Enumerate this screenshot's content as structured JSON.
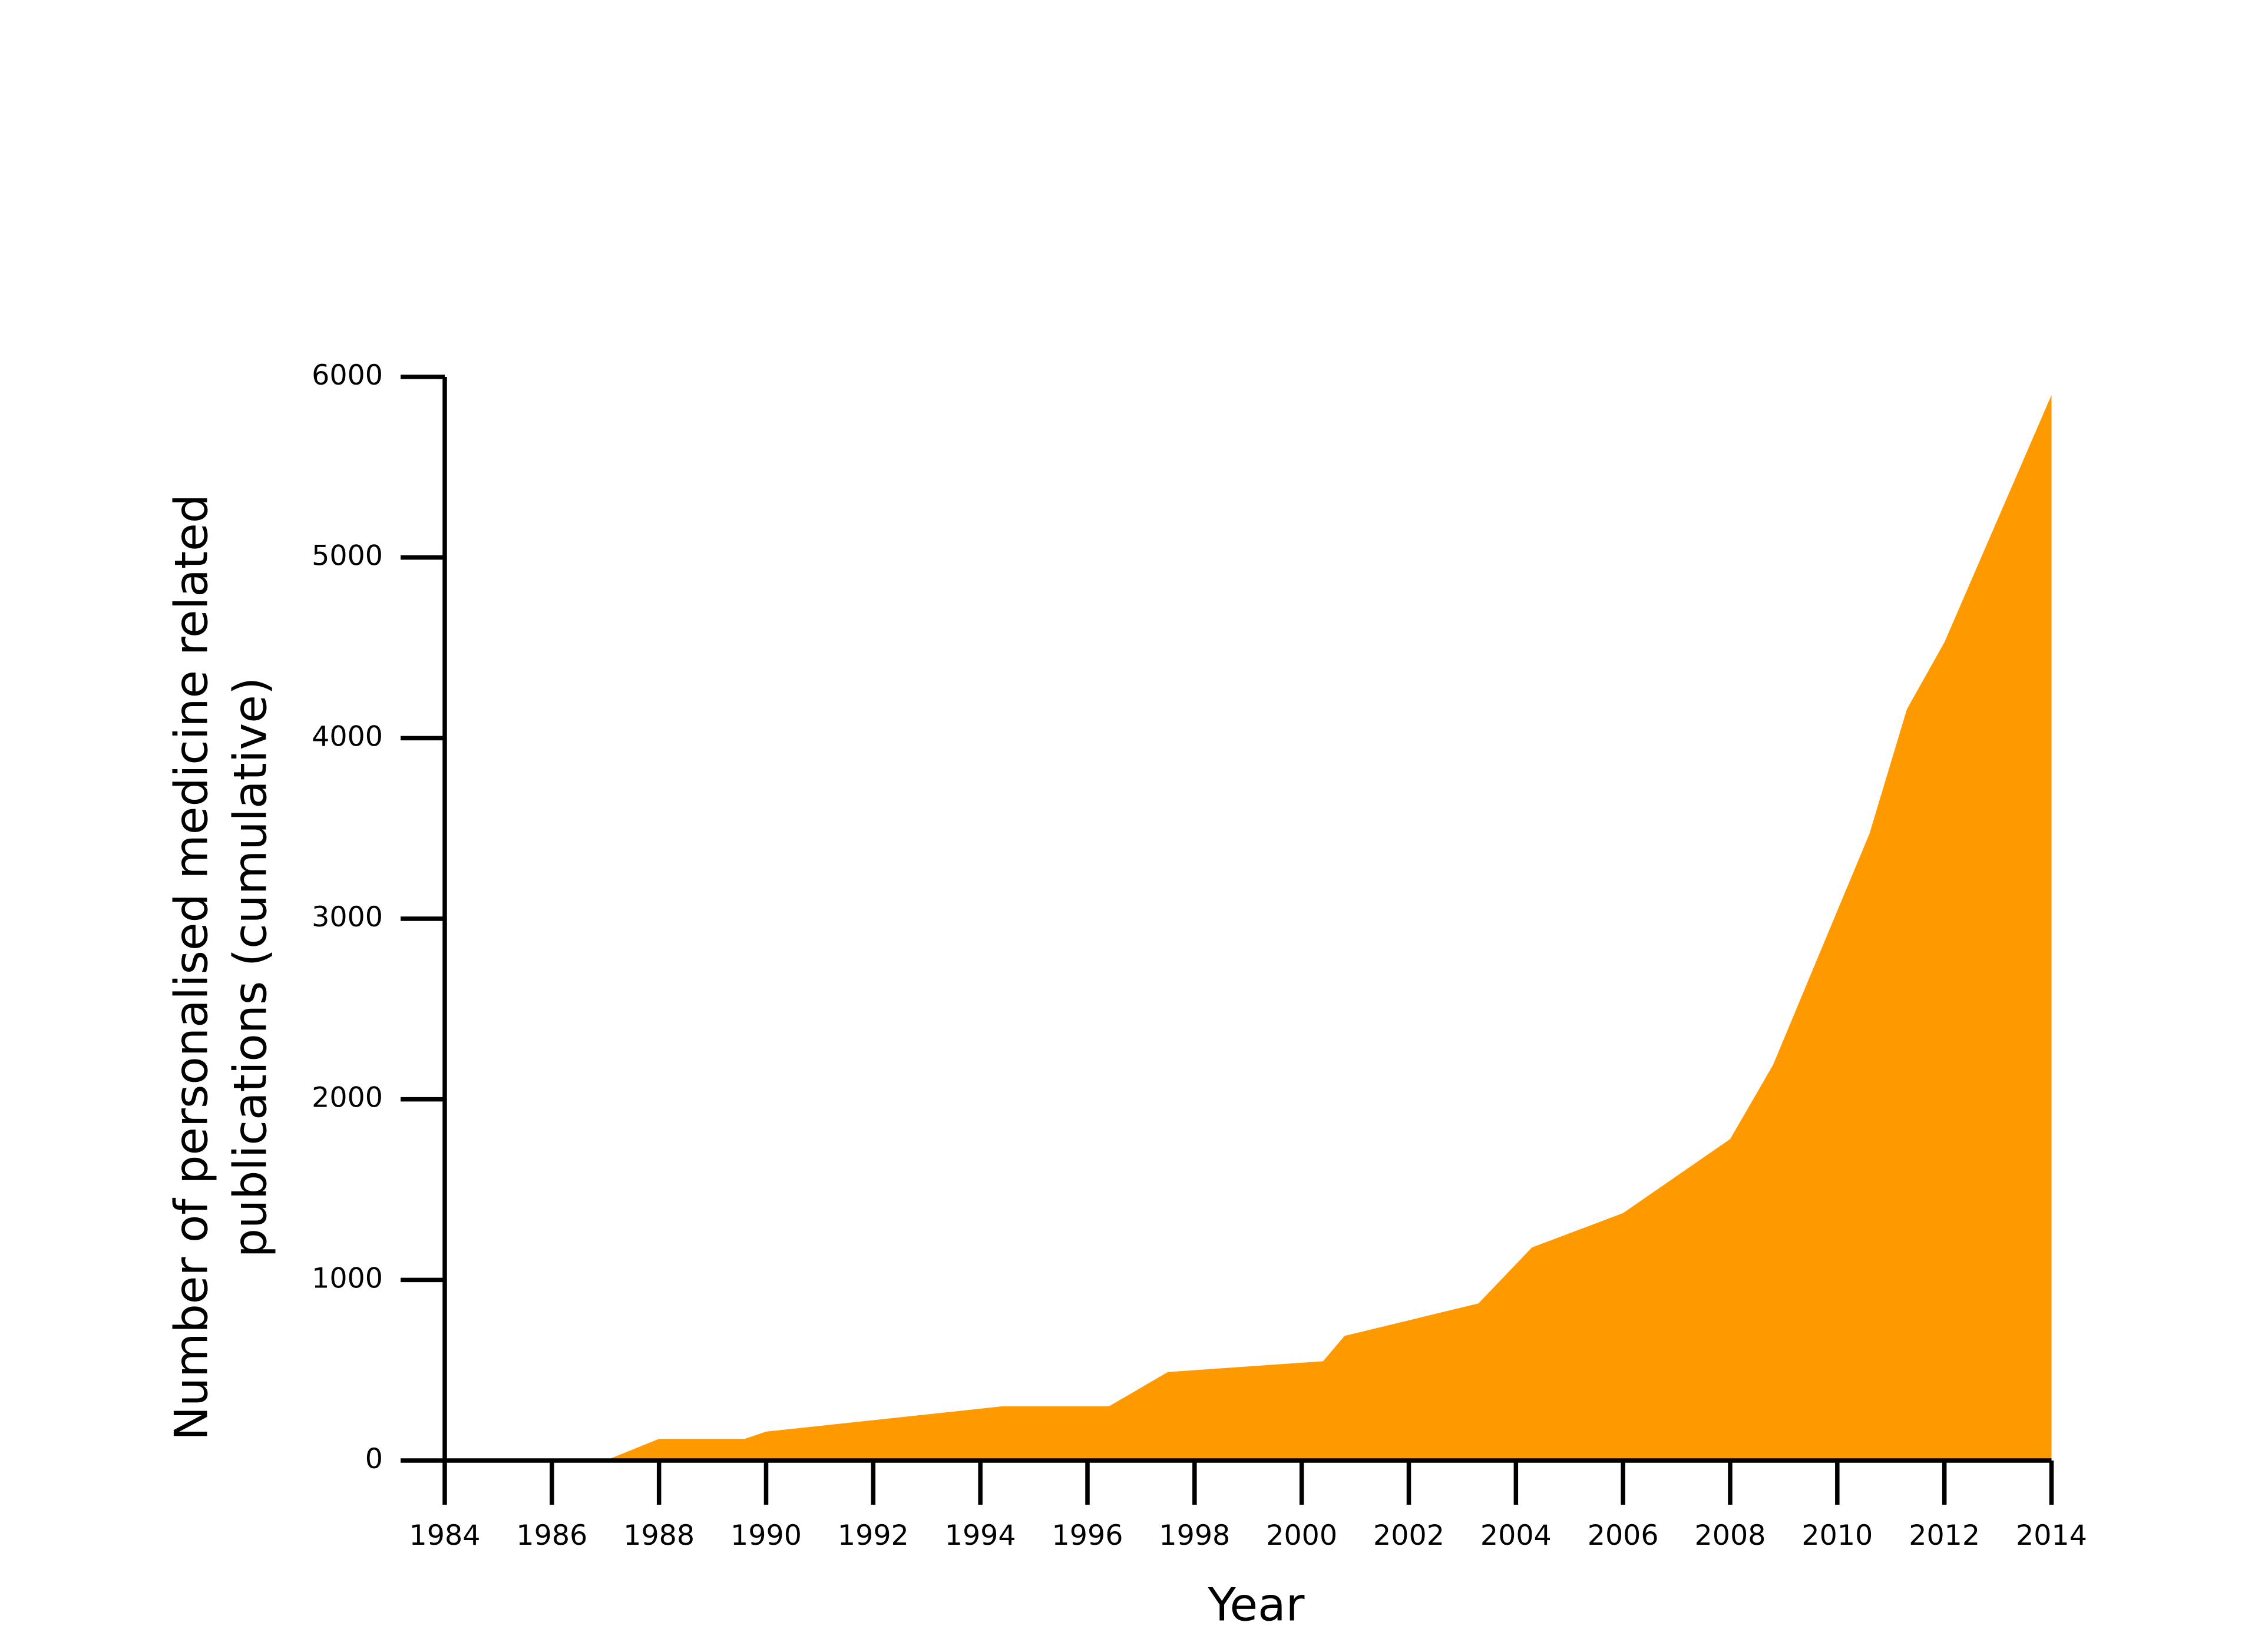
{
  "chart_data": {
    "type": "area",
    "x_label": "Year",
    "y_label": [
      "Number of personalised medicine related",
      "publications (cumulative)"
    ],
    "color": "#ff9900",
    "x": [
      1984,
      1987,
      1988,
      1989.6,
      1990,
      1994.4,
      1996.4,
      1997.5,
      2000.4,
      2000.8,
      2003.3,
      2004.3,
      2006,
      2008,
      2008.8,
      2010.6,
      2011.3,
      2012,
      2014
    ],
    "y": [
      0,
      0,
      120,
      120,
      160,
      300,
      300,
      490,
      550,
      690,
      870,
      1180,
      1370,
      1780,
      2190,
      3470,
      4160,
      4530,
      5900
    ],
    "xlim": [
      1984,
      2014
    ],
    "xticks": [
      1984,
      1986,
      1988,
      1990,
      1992,
      1994,
      1996,
      1998,
      2000,
      2002,
      2004,
      2006,
      2008,
      2010,
      2012,
      2014
    ],
    "ylim": [
      0,
      6000
    ],
    "yticks": [
      0,
      1000,
      2000,
      3000,
      4000,
      5000,
      6000
    ]
  }
}
